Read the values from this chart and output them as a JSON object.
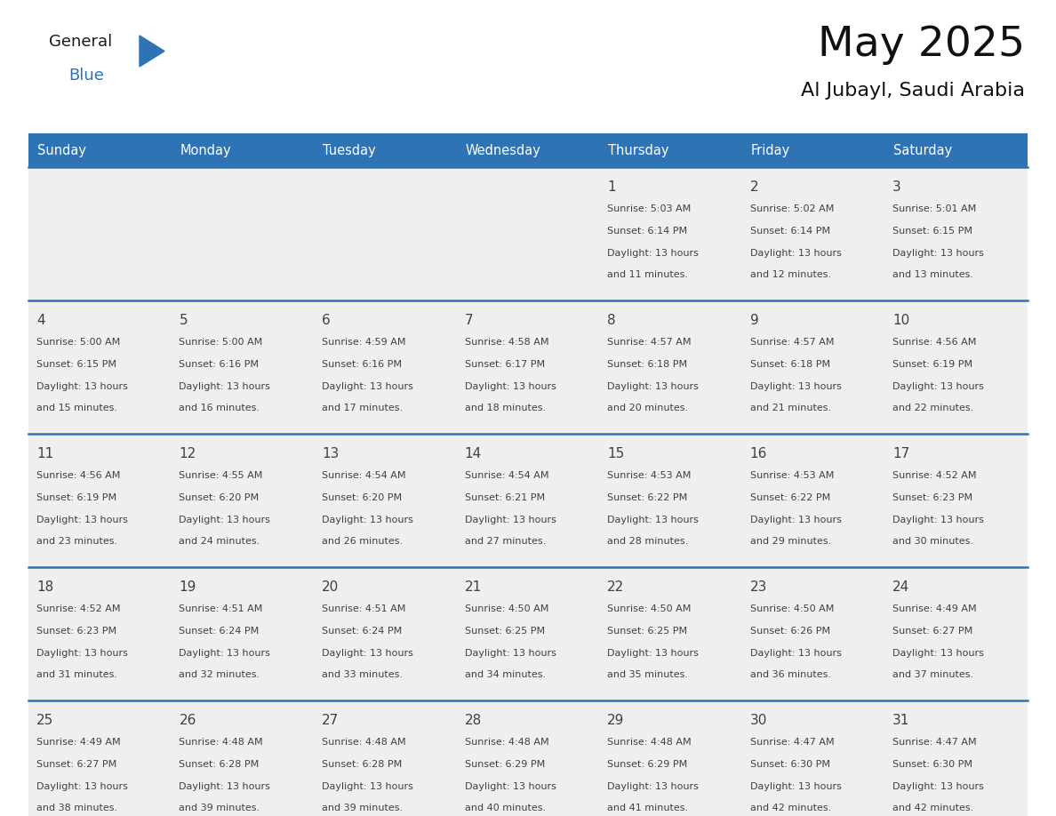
{
  "title": "May 2025",
  "subtitle": "Al Jubayl, Saudi Arabia",
  "days_of_week": [
    "Sunday",
    "Monday",
    "Tuesday",
    "Wednesday",
    "Thursday",
    "Friday",
    "Saturday"
  ],
  "header_bg": "#2E74B5",
  "header_text": "#FFFFFF",
  "cell_bg": "#EFEFEF",
  "separator_color": "#2E74B5",
  "text_color": "#404040",
  "calendar_data": [
    [
      null,
      null,
      null,
      null,
      {
        "day": 1,
        "sunrise": "5:03 AM",
        "sunset": "6:14 PM",
        "daylight": "13 hours and 11 minutes"
      },
      {
        "day": 2,
        "sunrise": "5:02 AM",
        "sunset": "6:14 PM",
        "daylight": "13 hours and 12 minutes"
      },
      {
        "day": 3,
        "sunrise": "5:01 AM",
        "sunset": "6:15 PM",
        "daylight": "13 hours and 13 minutes"
      }
    ],
    [
      {
        "day": 4,
        "sunrise": "5:00 AM",
        "sunset": "6:15 PM",
        "daylight": "13 hours and 15 minutes"
      },
      {
        "day": 5,
        "sunrise": "5:00 AM",
        "sunset": "6:16 PM",
        "daylight": "13 hours and 16 minutes"
      },
      {
        "day": 6,
        "sunrise": "4:59 AM",
        "sunset": "6:16 PM",
        "daylight": "13 hours and 17 minutes"
      },
      {
        "day": 7,
        "sunrise": "4:58 AM",
        "sunset": "6:17 PM",
        "daylight": "13 hours and 18 minutes"
      },
      {
        "day": 8,
        "sunrise": "4:57 AM",
        "sunset": "6:18 PM",
        "daylight": "13 hours and 20 minutes"
      },
      {
        "day": 9,
        "sunrise": "4:57 AM",
        "sunset": "6:18 PM",
        "daylight": "13 hours and 21 minutes"
      },
      {
        "day": 10,
        "sunrise": "4:56 AM",
        "sunset": "6:19 PM",
        "daylight": "13 hours and 22 minutes"
      }
    ],
    [
      {
        "day": 11,
        "sunrise": "4:56 AM",
        "sunset": "6:19 PM",
        "daylight": "13 hours and 23 minutes"
      },
      {
        "day": 12,
        "sunrise": "4:55 AM",
        "sunset": "6:20 PM",
        "daylight": "13 hours and 24 minutes"
      },
      {
        "day": 13,
        "sunrise": "4:54 AM",
        "sunset": "6:20 PM",
        "daylight": "13 hours and 26 minutes"
      },
      {
        "day": 14,
        "sunrise": "4:54 AM",
        "sunset": "6:21 PM",
        "daylight": "13 hours and 27 minutes"
      },
      {
        "day": 15,
        "sunrise": "4:53 AM",
        "sunset": "6:22 PM",
        "daylight": "13 hours and 28 minutes"
      },
      {
        "day": 16,
        "sunrise": "4:53 AM",
        "sunset": "6:22 PM",
        "daylight": "13 hours and 29 minutes"
      },
      {
        "day": 17,
        "sunrise": "4:52 AM",
        "sunset": "6:23 PM",
        "daylight": "13 hours and 30 minutes"
      }
    ],
    [
      {
        "day": 18,
        "sunrise": "4:52 AM",
        "sunset": "6:23 PM",
        "daylight": "13 hours and 31 minutes"
      },
      {
        "day": 19,
        "sunrise": "4:51 AM",
        "sunset": "6:24 PM",
        "daylight": "13 hours and 32 minutes"
      },
      {
        "day": 20,
        "sunrise": "4:51 AM",
        "sunset": "6:24 PM",
        "daylight": "13 hours and 33 minutes"
      },
      {
        "day": 21,
        "sunrise": "4:50 AM",
        "sunset": "6:25 PM",
        "daylight": "13 hours and 34 minutes"
      },
      {
        "day": 22,
        "sunrise": "4:50 AM",
        "sunset": "6:25 PM",
        "daylight": "13 hours and 35 minutes"
      },
      {
        "day": 23,
        "sunrise": "4:50 AM",
        "sunset": "6:26 PM",
        "daylight": "13 hours and 36 minutes"
      },
      {
        "day": 24,
        "sunrise": "4:49 AM",
        "sunset": "6:27 PM",
        "daylight": "13 hours and 37 minutes"
      }
    ],
    [
      {
        "day": 25,
        "sunrise": "4:49 AM",
        "sunset": "6:27 PM",
        "daylight": "13 hours and 38 minutes"
      },
      {
        "day": 26,
        "sunrise": "4:48 AM",
        "sunset": "6:28 PM",
        "daylight": "13 hours and 39 minutes"
      },
      {
        "day": 27,
        "sunrise": "4:48 AM",
        "sunset": "6:28 PM",
        "daylight": "13 hours and 39 minutes"
      },
      {
        "day": 28,
        "sunrise": "4:48 AM",
        "sunset": "6:29 PM",
        "daylight": "13 hours and 40 minutes"
      },
      {
        "day": 29,
        "sunrise": "4:48 AM",
        "sunset": "6:29 PM",
        "daylight": "13 hours and 41 minutes"
      },
      {
        "day": 30,
        "sunrise": "4:47 AM",
        "sunset": "6:30 PM",
        "daylight": "13 hours and 42 minutes"
      },
      {
        "day": 31,
        "sunrise": "4:47 AM",
        "sunset": "6:30 PM",
        "daylight": "13 hours and 42 minutes"
      }
    ]
  ],
  "logo_color_general": "#1a1a1a",
  "logo_color_blue": "#2E74B5",
  "logo_triangle_color": "#2E74B5",
  "figsize": [
    11.88,
    9.18
  ],
  "dpi": 100
}
